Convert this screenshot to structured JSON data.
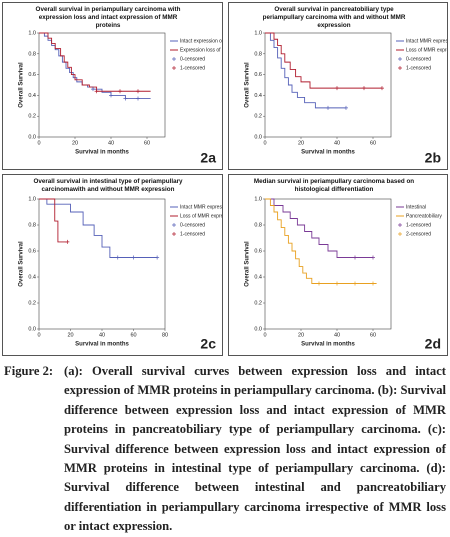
{
  "chart_data": [
    {
      "type": "line",
      "step": true,
      "panel_label": "2a",
      "title": "Overall survival in periampullary carcinoma with expression loss and intact expression of MMR proteins",
      "xlabel": "Survival in months",
      "ylabel": "Overall Survival",
      "xlim": [
        0,
        70
      ],
      "xticks": [
        0,
        20,
        40,
        60
      ],
      "ylim": [
        0,
        1
      ],
      "yticks": [
        {
          "value": 0,
          "label": "0.0"
        },
        {
          "value": 0.2,
          "label": "0.2"
        },
        {
          "value": 0.4,
          "label": "0.4"
        },
        {
          "value": 0.6,
          "label": "0.6"
        },
        {
          "value": 0.8,
          "label": "0.8"
        },
        {
          "value": 1,
          "label": "1.0"
        }
      ],
      "series": [
        {
          "name": "Intact expression of MMR proteins",
          "color": "#5560b8",
          "marker": "line",
          "x": [
            0,
            3,
            5,
            7,
            9,
            11,
            13,
            15,
            17,
            19,
            21,
            24,
            27,
            30,
            35,
            40,
            48,
            55,
            62
          ],
          "values": [
            1,
            0.97,
            0.93,
            0.88,
            0.84,
            0.78,
            0.72,
            0.66,
            0.62,
            0.57,
            0.53,
            0.5,
            0.48,
            0.46,
            0.43,
            0.4,
            0.37,
            0.37,
            0.37
          ]
        },
        {
          "name": "Expression loss of MMR proteins",
          "color": "#b01c2e",
          "marker": "line",
          "x": [
            0,
            5,
            7,
            9,
            12,
            14,
            16,
            18,
            20,
            24,
            28,
            32,
            40,
            50,
            62
          ],
          "values": [
            1,
            0.95,
            0.9,
            0.85,
            0.78,
            0.72,
            0.67,
            0.6,
            0.55,
            0.5,
            0.48,
            0.44,
            0.44,
            0.44,
            0.44
          ]
        },
        {
          "name": "0-censored",
          "color": "#5560b8",
          "marker": "plus",
          "x": [
            30,
            40,
            48,
            55
          ],
          "values": [
            0.46,
            0.4,
            0.37,
            0.37
          ]
        },
        {
          "name": "1-censored",
          "color": "#b01c2e",
          "marker": "plus",
          "x": [
            32,
            45,
            55
          ],
          "values": [
            0.44,
            0.44,
            0.44
          ]
        }
      ]
    },
    {
      "type": "line",
      "step": true,
      "panel_label": "2b",
      "title": "Overall survival in pancreatobiliary type periampullary carcinoma with and without MMR expression",
      "xlabel": "Survival in months",
      "ylabel": "Overall Survival",
      "xlim": [
        0,
        70
      ],
      "xticks": [
        0,
        20,
        40,
        60
      ],
      "ylim": [
        0,
        1
      ],
      "yticks": [
        {
          "value": 0,
          "label": "0.0"
        },
        {
          "value": 0.2,
          "label": "0.2"
        },
        {
          "value": 0.4,
          "label": "0.4"
        },
        {
          "value": 0.6,
          "label": "0.6"
        },
        {
          "value": 0.8,
          "label": "0.8"
        },
        {
          "value": 1,
          "label": "1.0"
        }
      ],
      "series": [
        {
          "name": "Intact MMR expression",
          "color": "#5560b8",
          "marker": "line",
          "x": [
            0,
            3,
            5,
            7,
            9,
            11,
            13,
            15,
            18,
            22,
            28,
            45
          ],
          "values": [
            1,
            0.93,
            0.86,
            0.76,
            0.66,
            0.57,
            0.5,
            0.43,
            0.38,
            0.33,
            0.28,
            0.28
          ]
        },
        {
          "name": "Loss of MMR expression",
          "color": "#b01c2e",
          "marker": "line",
          "x": [
            0,
            5,
            7,
            9,
            11,
            14,
            17,
            20,
            25,
            65
          ],
          "values": [
            1,
            0.94,
            0.88,
            0.8,
            0.72,
            0.65,
            0.58,
            0.53,
            0.47,
            0.47
          ]
        },
        {
          "name": "0-censored",
          "color": "#5560b8",
          "marker": "plus",
          "x": [
            35,
            45
          ],
          "values": [
            0.28,
            0.28
          ]
        },
        {
          "name": "1-censored",
          "color": "#b01c2e",
          "marker": "plus",
          "x": [
            40,
            55,
            65
          ],
          "values": [
            0.47,
            0.47,
            0.47
          ]
        }
      ]
    },
    {
      "type": "line",
      "step": true,
      "panel_label": "2c",
      "title": "Overall survival in intestinal type of periampullary carcinomawith and without MMR expression",
      "xlabel": "Survival in months",
      "ylabel": "Overall Survival",
      "xlim": [
        0,
        80
      ],
      "xticks": [
        0,
        20,
        40,
        60,
        80
      ],
      "ylim": [
        0,
        1
      ],
      "yticks": [
        {
          "value": 0,
          "label": "0.0"
        },
        {
          "value": 0.2,
          "label": "0.2"
        },
        {
          "value": 0.4,
          "label": "0.4"
        },
        {
          "value": 0.6,
          "label": "0.6"
        },
        {
          "value": 0.8,
          "label": "0.8"
        },
        {
          "value": 1,
          "label": "1.0"
        }
      ],
      "series": [
        {
          "name": "Intact MMR expression",
          "color": "#5560b8",
          "marker": "line",
          "x": [
            0,
            5,
            20,
            28,
            35,
            40,
            45,
            75
          ],
          "values": [
            1,
            0.96,
            0.9,
            0.8,
            0.72,
            0.63,
            0.55,
            0.55
          ]
        },
        {
          "name": "Loss of MMR expression",
          "color": "#b01c2e",
          "marker": "line",
          "x": [
            0,
            10,
            12,
            18
          ],
          "values": [
            1,
            0.83,
            0.67,
            0.67
          ]
        },
        {
          "name": "0-censored",
          "color": "#5560b8",
          "marker": "plus",
          "x": [
            50,
            60,
            75
          ],
          "values": [
            0.55,
            0.55,
            0.55
          ]
        },
        {
          "name": "1-censored",
          "color": "#b01c2e",
          "marker": "plus",
          "x": [
            18
          ],
          "values": [
            0.67
          ]
        }
      ]
    },
    {
      "type": "line",
      "step": true,
      "panel_label": "2d",
      "title": "Median survival in periampullary carcinoma based on histological differentiation",
      "xlabel": "Survival in months",
      "ylabel": "Overall Survival",
      "xlim": [
        0,
        70
      ],
      "xticks": [
        0,
        20,
        40,
        60
      ],
      "ylim": [
        0,
        1
      ],
      "yticks": [
        {
          "value": 0,
          "label": "0.0"
        },
        {
          "value": 0.2,
          "label": "0.2"
        },
        {
          "value": 0.4,
          "label": "0.4"
        },
        {
          "value": 0.6,
          "label": "0.6"
        },
        {
          "value": 0.8,
          "label": "0.8"
        },
        {
          "value": 1,
          "label": "1.0"
        }
      ],
      "series": [
        {
          "name": "Intestinal",
          "color": "#7a3a96",
          "marker": "line",
          "x": [
            0,
            5,
            10,
            14,
            18,
            22,
            26,
            30,
            35,
            40,
            45,
            60
          ],
          "values": [
            1,
            0.95,
            0.9,
            0.85,
            0.8,
            0.75,
            0.7,
            0.65,
            0.6,
            0.55,
            0.55,
            0.55
          ]
        },
        {
          "name": "Pancreatobiliary",
          "color": "#e8a020",
          "marker": "line",
          "x": [
            0,
            3,
            5,
            7,
            9,
            11,
            13,
            15,
            17,
            19,
            21,
            23,
            26,
            62
          ],
          "values": [
            1,
            0.95,
            0.9,
            0.84,
            0.78,
            0.72,
            0.66,
            0.6,
            0.54,
            0.48,
            0.43,
            0.39,
            0.35,
            0.35
          ]
        },
        {
          "name": "1-censored",
          "color": "#7a3a96",
          "marker": "plus",
          "x": [
            50,
            60
          ],
          "values": [
            0.55,
            0.55
          ]
        },
        {
          "name": "2-censored",
          "color": "#e8a020",
          "marker": "plus",
          "x": [
            30,
            40,
            50,
            60
          ],
          "values": [
            0.35,
            0.35,
            0.35,
            0.35
          ]
        }
      ]
    }
  ],
  "caption": {
    "label": "Figure 2:",
    "text": "(a): Overall survival curves between expression loss and intact expression of MMR proteins in periampullary carcinoma. (b): Survival difference between expression loss and intact expression of MMR proteins in pancreatobiliary type of periampullary carcinoma. (c): Survival difference between expression loss and intact expression of MMR proteins in intestinal type of periampullary carcinoma. (d): Survival difference between intestinal and pancreatobiliary differentiation in periampullary carcinoma irrespective of MMR loss or intact expression."
  }
}
